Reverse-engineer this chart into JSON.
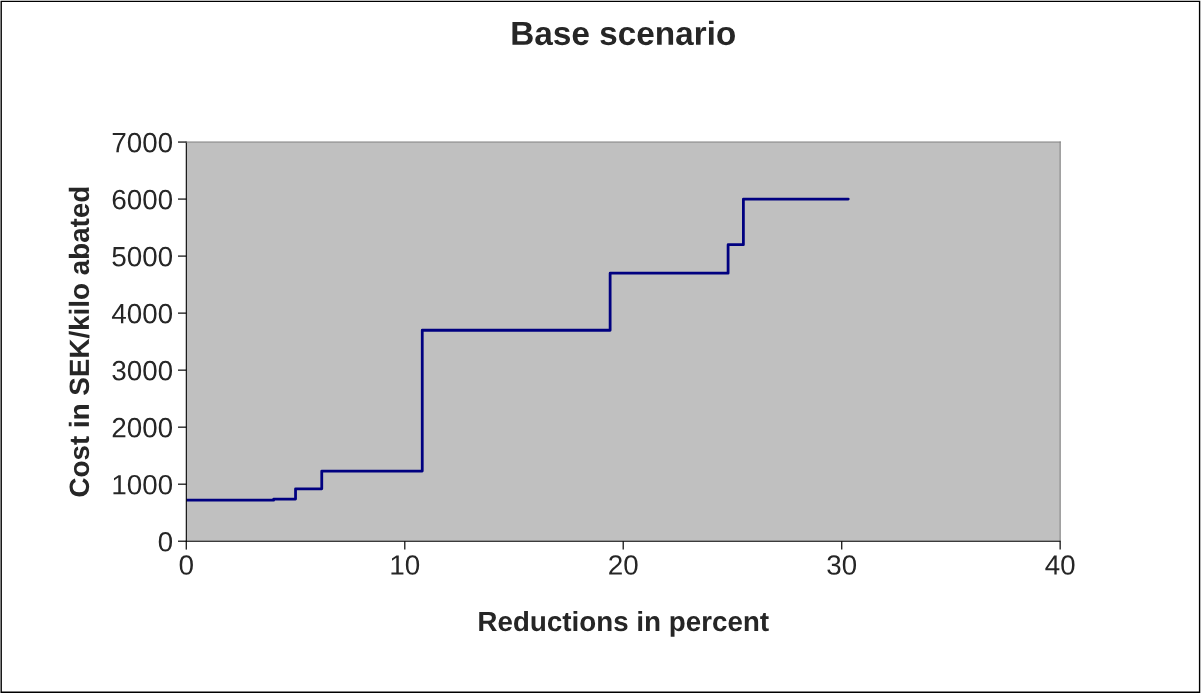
{
  "chart_data": {
    "type": "step",
    "title": "Base scenario",
    "xlabel": "Reductions in percent",
    "ylabel": "Cost in SEK/kilo abated",
    "x": [
      0,
      4.0,
      5.0,
      6.2,
      10.8,
      19.4,
      24.8,
      25.5,
      30.3
    ],
    "series": [
      {
        "color": "#000080",
        "values": [
          720,
          740,
          920,
          1230,
          3700,
          4700,
          5200,
          6000,
          6000
        ]
      }
    ],
    "xlim": [
      0,
      40
    ],
    "xticks": [
      0,
      10,
      20,
      30,
      40
    ],
    "ylim": [
      0,
      7000
    ],
    "yticks": [
      0,
      1000,
      2000,
      3000,
      4000,
      5000,
      6000,
      7000
    ],
    "grid": false,
    "legend": false
  }
}
